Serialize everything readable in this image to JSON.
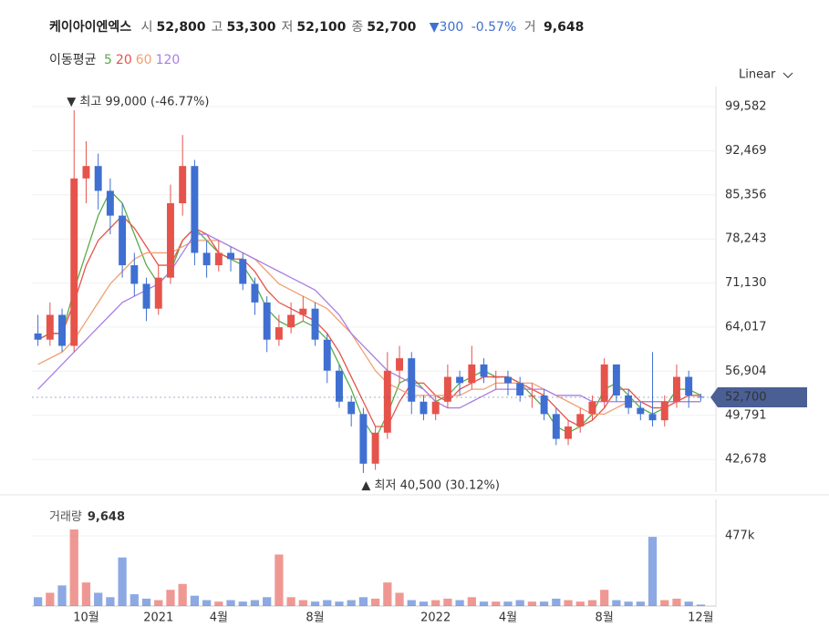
{
  "header": {
    "name": "케이아이엔엑스",
    "items": [
      {
        "label": "시",
        "value": "52,800"
      },
      {
        "label": "고",
        "value": "53,300"
      },
      {
        "label": "저",
        "value": "52,100"
      },
      {
        "label": "종",
        "value": "52,700"
      }
    ],
    "change": "▼300",
    "change_pct": "-0.57%",
    "volume_label": "거",
    "volume_value": "9,648"
  },
  "chart_data": {
    "type": "candlestick",
    "scale": "Linear",
    "ma_label": "이동평균",
    "categories": [
      null,
      null,
      null,
      null,
      "10월",
      null,
      null,
      null,
      null,
      null,
      "2021",
      null,
      null,
      null,
      null,
      "4월",
      null,
      null,
      null,
      null,
      null,
      null,
      null,
      "8월",
      null,
      null,
      null,
      null,
      null,
      null,
      null,
      null,
      null,
      "2022",
      null,
      null,
      null,
      null,
      null,
      "4월",
      null,
      null,
      null,
      null,
      null,
      null,
      null,
      "8월",
      null,
      null,
      null,
      null,
      null,
      null,
      null,
      "12월"
    ],
    "open": [
      63000,
      62000,
      66000,
      61000,
      88000,
      90000,
      86000,
      82000,
      74000,
      71000,
      67000,
      72000,
      84000,
      90000,
      76000,
      74000,
      76000,
      75000,
      71000,
      68000,
      62000,
      64000,
      66000,
      67000,
      62000,
      57000,
      52000,
      50000,
      42000,
      47000,
      57000,
      59000,
      52000,
      50000,
      52000,
      56000,
      55000,
      58000,
      56000,
      56000,
      55000,
      53000,
      53000,
      50000,
      46000,
      48000,
      50000,
      52000,
      58000,
      53000,
      51000,
      50000,
      49000,
      52000,
      56000,
      52800
    ],
    "high": [
      66000,
      68000,
      67000,
      99000,
      94000,
      92000,
      88000,
      84000,
      76000,
      72000,
      74000,
      87000,
      95000,
      91000,
      78000,
      78000,
      77000,
      76000,
      72000,
      69000,
      66000,
      68000,
      69000,
      68000,
      63000,
      58000,
      53000,
      51000,
      48000,
      60000,
      61000,
      60000,
      53000,
      53000,
      58000,
      57000,
      61000,
      59000,
      57000,
      57000,
      56000,
      55000,
      54000,
      51000,
      49000,
      51000,
      53000,
      59000,
      58000,
      54000,
      52000,
      60000,
      53000,
      58000,
      57000,
      53300
    ],
    "low": [
      61000,
      61000,
      60000,
      60000,
      84000,
      83000,
      79000,
      72000,
      69000,
      65000,
      66000,
      71000,
      82000,
      74000,
      72000,
      73000,
      73000,
      70000,
      66000,
      60000,
      61000,
      63000,
      65000,
      61000,
      55000,
      51000,
      48000,
      40500,
      41000,
      46000,
      55000,
      50000,
      49000,
      49000,
      51000,
      53000,
      54000,
      55000,
      54000,
      53000,
      52000,
      51000,
      49000,
      45000,
      45000,
      47000,
      49000,
      51000,
      52000,
      50000,
      49000,
      48000,
      48000,
      51000,
      51000,
      52100
    ],
    "close": [
      62000,
      66000,
      61000,
      88000,
      90000,
      86000,
      82000,
      74000,
      71000,
      67000,
      72000,
      84000,
      90000,
      76000,
      74000,
      76000,
      75000,
      71000,
      68000,
      62000,
      64000,
      66000,
      67000,
      62000,
      57000,
      52000,
      50000,
      42000,
      47000,
      57000,
      59000,
      52000,
      50000,
      52000,
      56000,
      55000,
      58000,
      56000,
      56000,
      55000,
      53000,
      53000,
      50000,
      46000,
      48000,
      50000,
      52000,
      58000,
      53000,
      51000,
      50000,
      49000,
      52000,
      56000,
      53000,
      52700
    ],
    "up_color": "#e5534b",
    "down_color": "#3f6fd1",
    "ylim": [
      38150,
      102080
    ],
    "yticks": [
      {
        "value": 42678,
        "label": "42,678"
      },
      {
        "value": 49791,
        "label": "49,791"
      },
      {
        "value": 56904,
        "label": "56,904"
      },
      {
        "value": 64017,
        "label": "64,017"
      },
      {
        "value": 71130,
        "label": "71,130"
      },
      {
        "value": 78243,
        "label": "78,243"
      },
      {
        "value": 85356,
        "label": "85,356"
      },
      {
        "value": 92469,
        "label": "92,469"
      },
      {
        "value": 99582,
        "label": "99,582"
      }
    ],
    "grid": true,
    "series": [
      {
        "name": "5",
        "color": "#5aab4c",
        "values": [
          62000,
          63000,
          63000,
          70000,
          76000,
          82000,
          86000,
          84000,
          79000,
          74000,
          71000,
          73000,
          78000,
          80000,
          78000,
          76000,
          75000,
          74000,
          71000,
          67000,
          65000,
          64000,
          65000,
          64000,
          62000,
          58000,
          54000,
          49000,
          46000,
          50000,
          55000,
          56000,
          54000,
          52000,
          53000,
          55000,
          56000,
          57000,
          56000,
          56000,
          55000,
          53000,
          51000,
          48000,
          47000,
          48000,
          50000,
          54000,
          55000,
          53000,
          51000,
          50000,
          51000,
          54000,
          54000,
          53000
        ]
      },
      {
        "name": "20",
        "color": "#e5534b",
        "values": [
          62000,
          63000,
          63000,
          68000,
          74000,
          78000,
          80000,
          82000,
          80000,
          77000,
          74000,
          74000,
          78000,
          80000,
          79000,
          76000,
          75000,
          75000,
          73000,
          70000,
          68000,
          67000,
          66000,
          65000,
          63000,
          60000,
          56000,
          52000,
          48000,
          48000,
          52000,
          55000,
          55000,
          53000,
          52000,
          54000,
          55000,
          56000,
          56000,
          56000,
          55000,
          54000,
          53000,
          51000,
          49000,
          48000,
          49000,
          51000,
          54000,
          54000,
          52000,
          51000,
          51000,
          52000,
          53000,
          53000
        ]
      },
      {
        "name": "60",
        "color": "#f0a070",
        "values": [
          58000,
          59000,
          60000,
          62000,
          65000,
          68000,
          71000,
          73000,
          75000,
          76000,
          76000,
          76000,
          77000,
          78000,
          78000,
          78000,
          77000,
          76000,
          75000,
          73000,
          71000,
          70000,
          69000,
          68000,
          67000,
          65000,
          63000,
          60000,
          57000,
          55000,
          54000,
          53000,
          53000,
          53000,
          53000,
          53000,
          54000,
          54000,
          55000,
          55000,
          55000,
          55000,
          54000,
          53000,
          52000,
          51000,
          50000,
          50000,
          51000,
          52000,
          52000,
          52000,
          52000,
          52000,
          52000,
          52000
        ]
      },
      {
        "name": "120",
        "color": "#a87ee6",
        "values": [
          54000,
          56000,
          58000,
          60000,
          62000,
          64000,
          66000,
          68000,
          69000,
          70000,
          71000,
          73000,
          76000,
          79000,
          79000,
          78000,
          77000,
          76000,
          75000,
          74000,
          73000,
          72000,
          71000,
          70000,
          68000,
          66000,
          63000,
          61000,
          59000,
          57000,
          56000,
          55000,
          54000,
          52000,
          51000,
          51000,
          52000,
          53000,
          54000,
          54000,
          54000,
          54000,
          54000,
          53000,
          53000,
          53000,
          52000,
          52000,
          52000,
          52000,
          52000,
          52000,
          52000,
          52000,
          52000,
          52000
        ]
      }
    ],
    "last_price_label": "52,700",
    "last_price": 52700,
    "annotations": [
      {
        "text": "▼ 최고 99,000 (-46.77%)",
        "value": 99000
      },
      {
        "text": "▲ 최저 40,500 (30.12%)",
        "value": 40500
      }
    ],
    "volume": {
      "label": "거래량",
      "last": "9,648",
      "values": [
        60000,
        90000,
        140000,
        520000,
        160000,
        90000,
        60000,
        330000,
        80000,
        50000,
        40000,
        110000,
        150000,
        70000,
        40000,
        30000,
        40000,
        30000,
        40000,
        60000,
        350000,
        60000,
        40000,
        30000,
        40000,
        30000,
        40000,
        60000,
        50000,
        160000,
        90000,
        40000,
        30000,
        40000,
        50000,
        40000,
        60000,
        30000,
        30000,
        30000,
        40000,
        30000,
        30000,
        50000,
        40000,
        30000,
        40000,
        110000,
        40000,
        30000,
        30000,
        470000,
        40000,
        50000,
        30000,
        9648
      ],
      "ylim": [
        0,
        712000
      ],
      "yticks": [
        {
          "value": 477000,
          "label": "477k"
        }
      ]
    }
  }
}
